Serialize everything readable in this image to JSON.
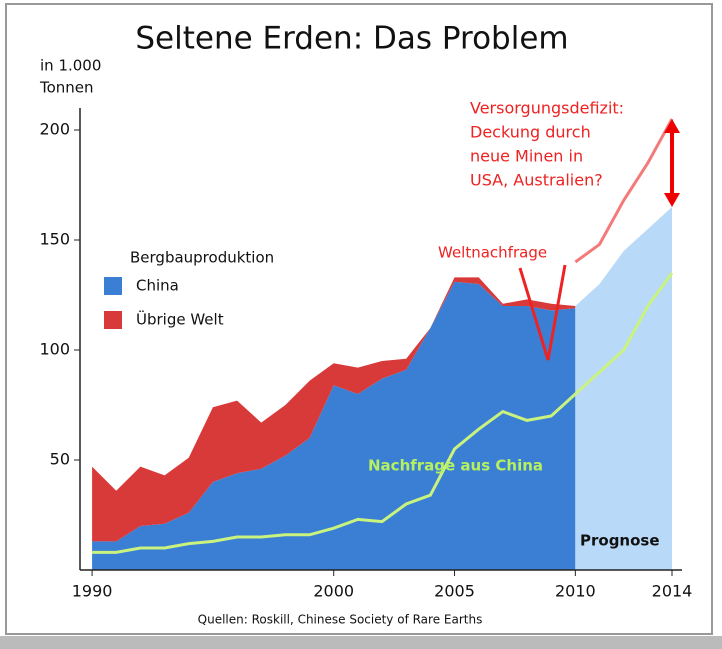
{
  "chart_data": {
    "type": "stacked_area",
    "title": "Seltene Erden: Das Problem",
    "y_label": [
      "in 1.000",
      "Tonnen"
    ],
    "legend_title": "Bergbauproduktion",
    "source": "Quellen: Roskill, Chinese Society of Rare Earths",
    "annotations": {
      "deficit": [
        "Versorgungsdefizit:",
        "Deckung durch",
        "neue Minen in",
        "USA, Australien?"
      ],
      "world": "Weltnachfrage",
      "china": "Nachfrage aus China",
      "forecast": "Prognose"
    },
    "x": [
      1990,
      1991,
      1992,
      1993,
      1994,
      1995,
      1996,
      1997,
      1998,
      1999,
      2000,
      2001,
      2002,
      2003,
      2004,
      2005,
      2006,
      2007,
      2008,
      2009,
      2010,
      2011,
      2012,
      2013,
      2014
    ],
    "series": [
      {
        "name": "China",
        "color": "#3b7fd4",
        "kind": "stack",
        "values": [
          13,
          13,
          20,
          21,
          26,
          40,
          44,
          46,
          52,
          60,
          84,
          80,
          87,
          91,
          110,
          131,
          130,
          120,
          120,
          118,
          119,
          null,
          null,
          null,
          null
        ]
      },
      {
        "name": "Übrige Welt",
        "color": "#d83a3a",
        "kind": "stack",
        "values": [
          34,
          23,
          27,
          22,
          25,
          34,
          33,
          21,
          23,
          26,
          10,
          12,
          8,
          5,
          0,
          2,
          3,
          1,
          3,
          3,
          1,
          null,
          null,
          null,
          null
        ]
      },
      {
        "color": "#b9d9f8",
        "kind": "forecast",
        "values": [
          null,
          null,
          null,
          null,
          null,
          null,
          null,
          null,
          null,
          null,
          null,
          null,
          null,
          null,
          null,
          null,
          null,
          null,
          null,
          null,
          120,
          130,
          145,
          155,
          165
        ]
      },
      {
        "color": "#f47a7a",
        "kind": "line",
        "values": [
          null,
          null,
          null,
          null,
          null,
          null,
          null,
          null,
          null,
          null,
          null,
          null,
          null,
          null,
          null,
          null,
          null,
          null,
          null,
          null,
          140,
          148,
          168,
          185,
          205
        ]
      },
      {
        "color": "#c9f27e",
        "kind": "line",
        "values": [
          8,
          8,
          10,
          10,
          12,
          13,
          15,
          15,
          16,
          16,
          19,
          23,
          22,
          30,
          34,
          55,
          64,
          72,
          68,
          70,
          80,
          90,
          100,
          120,
          135
        ]
      }
    ],
    "xlim": [
      1989.5,
      2014
    ],
    "ylim": [
      0,
      210
    ],
    "xticks": [
      1990,
      2000,
      2005,
      2010,
      2014
    ],
    "yticks": [
      50,
      100,
      150,
      200
    ]
  }
}
